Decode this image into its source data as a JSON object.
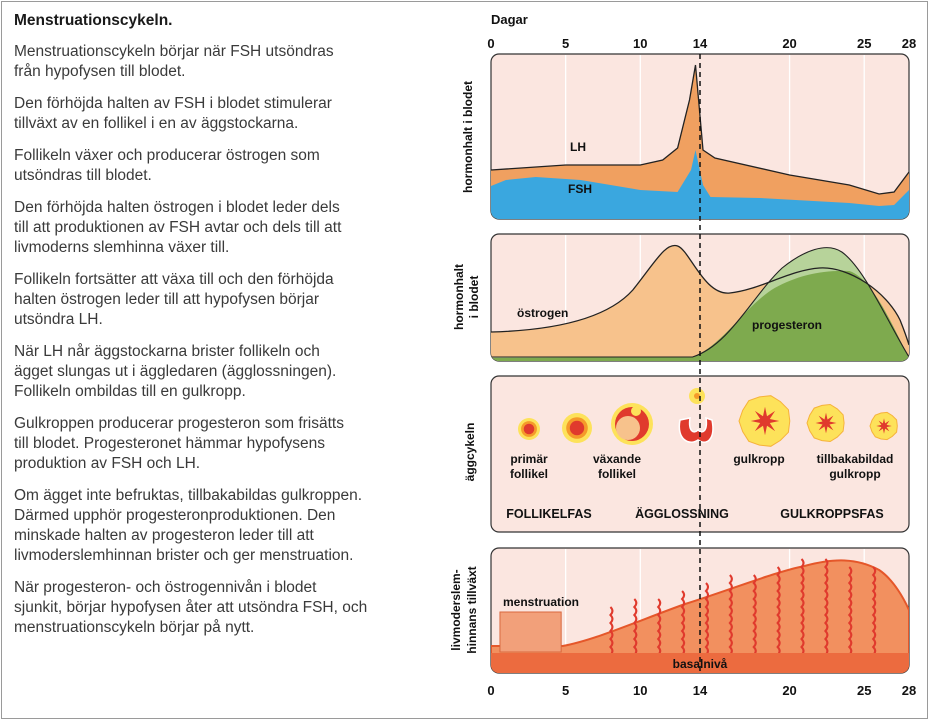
{
  "text": {
    "title": "Menstruationscykeln.",
    "paragraphs": [
      [
        "Menstruationscykeln börjar när FSH utsöndras",
        "från hypofysen till blodet."
      ],
      [
        "Den förhöjda halten av FSH i blodet stimulerar",
        "tillväxt av en follikel i en av äggstockarna."
      ],
      [
        "Follikeln växer och producerar östrogen som",
        "utsöndras till blodet."
      ],
      [
        "Den förhöjda halten östrogen i blodet leder dels",
        "till att produktionen av FSH avtar och dels till att",
        "livmoderns slemhinna växer till."
      ],
      [
        "Follikeln fortsätter att växa till och den förhöjda",
        "halten östrogen leder till att hypofysen börjar",
        "utsöndra LH."
      ],
      [
        "När LH når äggstockarna brister follikeln och",
        "ägget slungas ut i äggledaren (ägglossningen).",
        "Follikeln ombildas till en gulkropp."
      ],
      [
        "Gulkroppen producerar progesteron som frisätts",
        "till blodet. Progesteronet hämmar hypofysens",
        "produktion av FSH och LH."
      ],
      [
        "Om ägget inte befruktas, tillbakabildas gulkroppen.",
        "Därmed upphör progesteronproduktionen. Den",
        "minskade halten av progesteron leder till att",
        "livmoderslemhinnan brister och ger menstruation."
      ],
      [
        "När progesteron- och östrogennivån i blodet",
        "sjunkit, börjar hypofysen åter att utsöndra FSH, och",
        "menstruationscykeln börjar på nytt."
      ]
    ]
  },
  "diagram": {
    "axis_title": "Dagar",
    "day_ticks": [
      "0",
      "5",
      "10",
      "14",
      "20",
      "25",
      "28"
    ],
    "day_values": [
      0,
      5,
      10,
      14,
      20,
      25,
      28
    ],
    "ovulation_day": 14,
    "panel1": {
      "side_label": "hormonhalt i blodet",
      "lh_label": "LH",
      "fsh_label": "FSH"
    },
    "panel2": {
      "side_label_1": "hormonhalt",
      "side_label_2": "i blodet",
      "estrogen_label": "östrogen",
      "progesterone_label": "progesteron"
    },
    "panel3": {
      "side_label": "äggcykeln",
      "stage_labels": [
        [
          "primär",
          "follikel"
        ],
        [
          "växande",
          "follikel"
        ],
        [
          "gulkropp"
        ],
        [
          "tillbakabildad",
          "gulkropp"
        ]
      ],
      "phases": [
        "FOLLIKELFAS",
        "ÄGGLOSSNING",
        "GULKROPPSFAS"
      ]
    },
    "panel4": {
      "side_label_1": "livmoderslem-",
      "side_label_2": "hinnans tillväxt",
      "menstruation_label": "menstruation",
      "base_label": "basalnivå"
    },
    "colors": {
      "panel_bg": "#fbe6e0",
      "lh": "#f0a060",
      "fsh": "#3aa7df",
      "estrogen": "#f7c28c",
      "progesterone": "#7eaa4e",
      "progesterone_light": "#b7d39a",
      "endometrium": "#ec6b3f",
      "follicle_yellow": "#fde25a",
      "follicle_red": "#e03a2d"
    }
  }
}
